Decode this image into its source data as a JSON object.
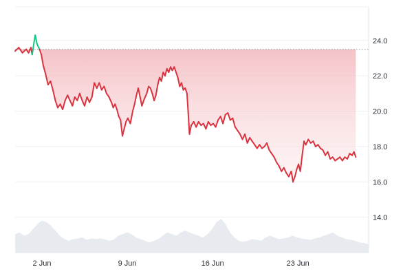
{
  "chart_data": {
    "type": "area",
    "title": "",
    "xlabel": "",
    "ylabel": "",
    "x_ticks": [
      {
        "label": "2 Jun",
        "day": 2
      },
      {
        "label": "9 Jun",
        "day": 9
      },
      {
        "label": "16 Jun",
        "day": 16
      },
      {
        "label": "23 Jun",
        "day": 23
      }
    ],
    "xlim_days": [
      -0.2,
      28.8
    ],
    "y_ticks": [
      "24.0",
      "22.0",
      "20.0",
      "18.0",
      "16.0",
      "14.0"
    ],
    "ylim": [
      12.0,
      25.9
    ],
    "reference_line": {
      "value": 23.5,
      "style": "dotted"
    },
    "series": [
      {
        "color_above": "#16c784",
        "color_below": "#d9333f",
        "points": [
          [
            -0.2,
            23.4
          ],
          [
            0.1,
            23.6
          ],
          [
            0.4,
            23.3
          ],
          [
            0.7,
            23.5
          ],
          [
            0.9,
            23.3
          ],
          [
            1.1,
            23.6
          ],
          [
            1.2,
            23.2
          ],
          [
            1.35,
            23.9
          ],
          [
            1.45,
            24.3
          ],
          [
            1.6,
            23.8
          ],
          [
            1.8,
            23.5
          ],
          [
            1.95,
            23.2
          ],
          [
            2.1,
            22.6
          ],
          [
            2.3,
            22.1
          ],
          [
            2.5,
            21.5
          ],
          [
            2.7,
            21.7
          ],
          [
            2.9,
            21.2
          ],
          [
            3.1,
            20.6
          ],
          [
            3.3,
            20.2
          ],
          [
            3.5,
            20.4
          ],
          [
            3.7,
            20.1
          ],
          [
            3.9,
            20.6
          ],
          [
            4.1,
            20.9
          ],
          [
            4.3,
            20.6
          ],
          [
            4.5,
            20.3
          ],
          [
            4.7,
            20.8
          ],
          [
            4.9,
            20.6
          ],
          [
            5.1,
            21.0
          ],
          [
            5.3,
            20.6
          ],
          [
            5.5,
            20.3
          ],
          [
            5.7,
            20.8
          ],
          [
            5.9,
            20.5
          ],
          [
            6.1,
            20.8
          ],
          [
            6.3,
            21.6
          ],
          [
            6.5,
            21.3
          ],
          [
            6.7,
            21.6
          ],
          [
            6.9,
            21.2
          ],
          [
            7.1,
            21.4
          ],
          [
            7.3,
            21.0
          ],
          [
            7.5,
            20.8
          ],
          [
            7.7,
            20.5
          ],
          [
            7.85,
            20.2
          ],
          [
            8.0,
            20.4
          ],
          [
            8.15,
            20.1
          ],
          [
            8.3,
            19.7
          ],
          [
            8.45,
            19.5
          ],
          [
            8.6,
            18.6
          ],
          [
            8.75,
            19.0
          ],
          [
            8.9,
            19.4
          ],
          [
            9.05,
            19.6
          ],
          [
            9.25,
            19.3
          ],
          [
            9.45,
            20.0
          ],
          [
            9.6,
            20.4
          ],
          [
            9.75,
            20.9
          ],
          [
            9.9,
            21.3
          ],
          [
            10.05,
            20.8
          ],
          [
            10.2,
            20.3
          ],
          [
            10.4,
            20.7
          ],
          [
            10.6,
            21.0
          ],
          [
            10.75,
            21.4
          ],
          [
            10.9,
            21.3
          ],
          [
            11.05,
            21.0
          ],
          [
            11.2,
            20.6
          ],
          [
            11.35,
            20.9
          ],
          [
            11.5,
            21.5
          ],
          [
            11.65,
            21.9
          ],
          [
            11.8,
            21.7
          ],
          [
            11.95,
            22.2
          ],
          [
            12.1,
            22.0
          ],
          [
            12.25,
            22.4
          ],
          [
            12.4,
            22.2
          ],
          [
            12.55,
            22.5
          ],
          [
            12.7,
            22.3
          ],
          [
            12.85,
            22.5
          ],
          [
            13.0,
            22.2
          ],
          [
            13.15,
            21.9
          ],
          [
            13.3,
            21.4
          ],
          [
            13.45,
            21.6
          ],
          [
            13.6,
            21.2
          ],
          [
            13.75,
            21.3
          ],
          [
            13.9,
            21.0
          ],
          [
            14.0,
            19.9
          ],
          [
            14.1,
            18.7
          ],
          [
            14.25,
            19.2
          ],
          [
            14.45,
            19.4
          ],
          [
            14.65,
            19.1
          ],
          [
            14.85,
            19.4
          ],
          [
            15.05,
            19.2
          ],
          [
            15.25,
            19.3
          ],
          [
            15.45,
            19.0
          ],
          [
            15.65,
            19.4
          ],
          [
            15.85,
            19.2
          ],
          [
            16.05,
            19.3
          ],
          [
            16.25,
            19.1
          ],
          [
            16.45,
            19.5
          ],
          [
            16.65,
            19.7
          ],
          [
            16.85,
            19.3
          ],
          [
            17.05,
            19.8
          ],
          [
            17.25,
            19.9
          ],
          [
            17.45,
            19.5
          ],
          [
            17.65,
            19.6
          ],
          [
            17.85,
            19.1
          ],
          [
            18.05,
            18.9
          ],
          [
            18.25,
            18.7
          ],
          [
            18.45,
            18.4
          ],
          [
            18.65,
            18.7
          ],
          [
            18.85,
            18.2
          ],
          [
            19.05,
            18.5
          ],
          [
            19.25,
            18.3
          ],
          [
            19.45,
            18.1
          ],
          [
            19.65,
            17.9
          ],
          [
            19.85,
            18.1
          ],
          [
            20.05,
            17.9
          ],
          [
            20.25,
            18.0
          ],
          [
            20.45,
            18.2
          ],
          [
            20.65,
            17.8
          ],
          [
            20.85,
            17.6
          ],
          [
            21.05,
            17.4
          ],
          [
            21.25,
            17.1
          ],
          [
            21.45,
            16.9
          ],
          [
            21.65,
            16.6
          ],
          [
            21.85,
            16.8
          ],
          [
            22.05,
            16.5
          ],
          [
            22.25,
            16.3
          ],
          [
            22.45,
            16.6
          ],
          [
            22.6,
            16.0
          ],
          [
            22.75,
            16.3
          ],
          [
            22.9,
            16.7
          ],
          [
            23.05,
            17.0
          ],
          [
            23.2,
            16.6
          ],
          [
            23.35,
            17.5
          ],
          [
            23.5,
            18.3
          ],
          [
            23.65,
            18.1
          ],
          [
            23.85,
            18.4
          ],
          [
            24.05,
            18.2
          ],
          [
            24.25,
            18.3
          ],
          [
            24.45,
            18.0
          ],
          [
            24.65,
            18.1
          ],
          [
            24.85,
            17.9
          ],
          [
            25.05,
            17.8
          ],
          [
            25.25,
            17.5
          ],
          [
            25.45,
            17.7
          ],
          [
            25.65,
            17.3
          ],
          [
            25.85,
            17.4
          ],
          [
            26.05,
            17.2
          ],
          [
            26.25,
            17.3
          ],
          [
            26.45,
            17.4
          ],
          [
            26.65,
            17.2
          ],
          [
            26.85,
            17.4
          ],
          [
            27.05,
            17.3
          ],
          [
            27.25,
            17.6
          ],
          [
            27.45,
            17.5
          ],
          [
            27.6,
            17.7
          ],
          [
            27.75,
            17.4
          ]
        ]
      }
    ],
    "volume_series": {
      "color": "#e7ebf0",
      "values": [
        0.55,
        0.6,
        0.5,
        0.55,
        0.7,
        0.85,
        0.95,
        0.9,
        0.8,
        0.65,
        0.5,
        0.4,
        0.35,
        0.4,
        0.42,
        0.45,
        0.38,
        0.42,
        0.4,
        0.42,
        0.4,
        0.35,
        0.38,
        0.5,
        0.55,
        0.6,
        0.55,
        0.45,
        0.4,
        0.35,
        0.3,
        0.35,
        0.4,
        0.5,
        0.6,
        0.55,
        0.5,
        0.6,
        0.65,
        0.6,
        0.55,
        0.5,
        0.45,
        0.55,
        0.7,
        0.9,
        1.0,
        0.85,
        0.6,
        0.45,
        0.35,
        0.32,
        0.35,
        0.4,
        0.38,
        0.35,
        0.45,
        0.5,
        0.45,
        0.4,
        0.42,
        0.45,
        0.5,
        0.45,
        0.42,
        0.4,
        0.38,
        0.42,
        0.45,
        0.5,
        0.55,
        0.6,
        0.5,
        0.45,
        0.4,
        0.38,
        0.35,
        0.3,
        0.28,
        0.25
      ]
    }
  }
}
